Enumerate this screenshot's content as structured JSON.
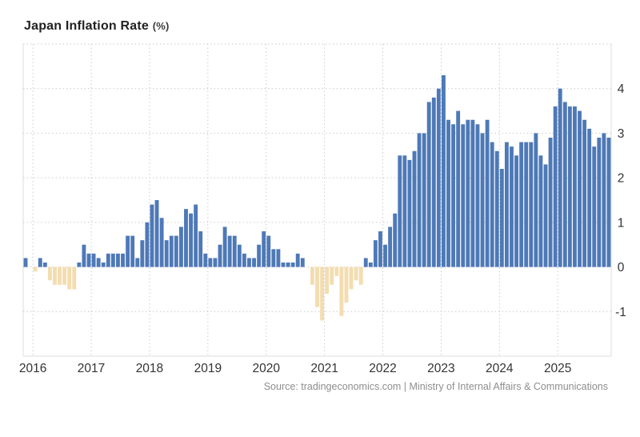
{
  "title": {
    "main": "Japan Inflation Rate",
    "unit": "(%)"
  },
  "source": "Source: tradingeconomics.com | Ministry of Internal Affairs & Communications",
  "chart_data": {
    "type": "bar",
    "title": "Japan Inflation Rate (%)",
    "x_start_month": "2015-11",
    "x_end_month": "2025-11",
    "x_tick_labels": [
      "2016",
      "2017",
      "2018",
      "2019",
      "2020",
      "2021",
      "2022",
      "2023",
      "2024",
      "2025"
    ],
    "y_tick_values": [
      4,
      3,
      2,
      1,
      0,
      -1
    ],
    "ylim": [
      -2.0,
      5.0
    ],
    "grid": "dotted",
    "legend": "none",
    "colors": {
      "positive_bar": "#4e79b7",
      "negative_bar": "#f3ddb0",
      "gridline": "#cccccc",
      "border": "#dddddd",
      "axis_text": "#333333"
    },
    "values": [
      0.2,
      0.0,
      -0.1,
      0.2,
      0.1,
      -0.3,
      -0.4,
      -0.4,
      -0.4,
      -0.5,
      -0.5,
      0.1,
      0.5,
      0.3,
      0.3,
      0.2,
      0.1,
      0.3,
      0.3,
      0.3,
      0.3,
      0.7,
      0.7,
      0.2,
      0.6,
      1.0,
      1.4,
      1.5,
      1.1,
      0.6,
      0.7,
      0.7,
      0.9,
      1.3,
      1.2,
      1.4,
      0.8,
      0.3,
      0.2,
      0.2,
      0.5,
      0.9,
      0.7,
      0.7,
      0.5,
      0.3,
      0.2,
      0.2,
      0.5,
      0.8,
      0.7,
      0.4,
      0.4,
      0.1,
      0.1,
      0.1,
      0.3,
      0.2,
      0.0,
      -0.4,
      -0.9,
      -1.2,
      -0.6,
      -0.4,
      -0.2,
      -1.1,
      -0.8,
      -0.5,
      -0.3,
      -0.4,
      0.2,
      0.1,
      0.6,
      0.8,
      0.5,
      0.9,
      1.2,
      2.5,
      2.5,
      2.4,
      2.6,
      3.0,
      3.0,
      3.7,
      3.8,
      4.0,
      4.3,
      3.3,
      3.2,
      3.5,
      3.2,
      3.3,
      3.3,
      3.2,
      3.0,
      3.3,
      2.8,
      2.6,
      2.2,
      2.8,
      2.7,
      2.5,
      2.8,
      2.8,
      2.8,
      3.0,
      2.5,
      2.3,
      2.9,
      3.6,
      4.0,
      3.7,
      3.6,
      3.6,
      3.5,
      3.3,
      3.1,
      2.7,
      2.9,
      3.0,
      2.9
    ]
  }
}
